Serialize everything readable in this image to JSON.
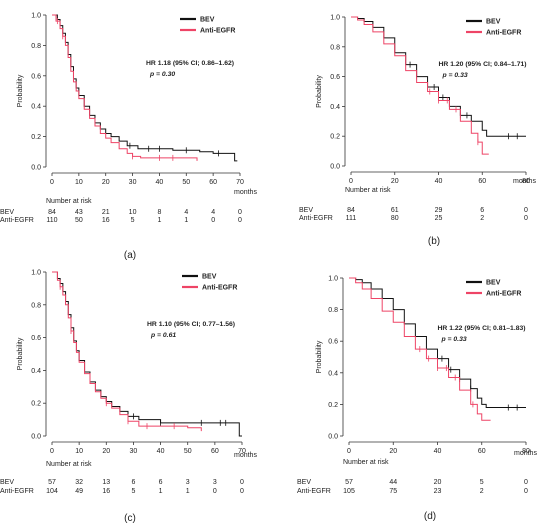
{
  "chart_data": [
    {
      "type": "line",
      "panel_label": "(a)",
      "ylabel": "Probability",
      "xlabel": "months",
      "xlim": [
        0,
        70
      ],
      "ylim": [
        0,
        1.0
      ],
      "xticks": [
        0,
        10,
        20,
        30,
        40,
        50,
        60,
        70
      ],
      "yticks": [
        0.0,
        0.2,
        0.4,
        0.6,
        0.8,
        1.0
      ],
      "annotation": {
        "hr": "HR 1.18 (95% CI; 0.86–1.62)",
        "p": "p = 0.30"
      },
      "series": [
        {
          "name": "BEV",
          "color": "#111111",
          "points": [
            [
              0,
              1.0
            ],
            [
              2,
              0.97
            ],
            [
              3,
              0.93
            ],
            [
              4,
              0.88
            ],
            [
              5,
              0.82
            ],
            [
              6,
              0.74
            ],
            [
              7,
              0.66
            ],
            [
              8,
              0.58
            ],
            [
              9,
              0.52
            ],
            [
              10,
              0.47
            ],
            [
              12,
              0.4
            ],
            [
              14,
              0.34
            ],
            [
              16,
              0.29
            ],
            [
              18,
              0.25
            ],
            [
              20,
              0.22
            ],
            [
              22,
              0.2
            ],
            [
              25,
              0.17
            ],
            [
              28,
              0.14
            ],
            [
              32,
              0.12
            ],
            [
              40,
              0.12
            ],
            [
              45,
              0.11
            ],
            [
              55,
              0.1
            ],
            [
              60,
              0.09
            ],
            [
              66,
              0.09
            ],
            [
              68,
              0.04
            ],
            [
              69,
              0.04
            ]
          ],
          "censor_x": [
            29,
            36,
            40,
            50,
            62
          ]
        },
        {
          "name": "Anti-EGFR",
          "color": "#ee4466",
          "points": [
            [
              0,
              1.0
            ],
            [
              1.5,
              0.96
            ],
            [
              3,
              0.91
            ],
            [
              4,
              0.86
            ],
            [
              5,
              0.8
            ],
            [
              6,
              0.72
            ],
            [
              7,
              0.63
            ],
            [
              8,
              0.56
            ],
            [
              9,
              0.5
            ],
            [
              10,
              0.45
            ],
            [
              12,
              0.38
            ],
            [
              14,
              0.32
            ],
            [
              16,
              0.27
            ],
            [
              18,
              0.22
            ],
            [
              20,
              0.19
            ],
            [
              22,
              0.16
            ],
            [
              25,
              0.12
            ],
            [
              28,
              0.09
            ],
            [
              30,
              0.07
            ],
            [
              33,
              0.06
            ],
            [
              40,
              0.06
            ],
            [
              48,
              0.06
            ],
            [
              54,
              0.04
            ]
          ],
          "censor_x": [
            2,
            4,
            30,
            40,
            45
          ]
        }
      ],
      "risk_table": {
        "title": "Number at risk",
        "times": [
          0,
          10,
          20,
          30,
          40,
          50,
          60,
          70
        ],
        "rows": [
          {
            "label": "BEV",
            "values": [
              "84",
              "43",
              "21",
              "10",
              "8",
              "4",
              "4",
              "0"
            ]
          },
          {
            "label": "Anti-EGFR",
            "values": [
              "110",
              "50",
              "16",
              "5",
              "1",
              "1",
              "0",
              "0"
            ]
          }
        ]
      }
    },
    {
      "type": "line",
      "panel_label": "(b)",
      "ylabel": "Probability",
      "xlabel": "months",
      "xlim": [
        0,
        80
      ],
      "ylim": [
        0,
        1.0
      ],
      "xticks": [
        0,
        20,
        40,
        60,
        80
      ],
      "yticks": [
        0.0,
        0.2,
        0.4,
        0.6,
        0.8,
        1.0
      ],
      "annotation": {
        "hr": "HR 1.20 (95% CI; 0.84–1.71)",
        "p": "p = 0.33"
      },
      "series": [
        {
          "name": "BEV",
          "color": "#111111",
          "points": [
            [
              0,
              1.0
            ],
            [
              3,
              0.99
            ],
            [
              6,
              0.97
            ],
            [
              10,
              0.93
            ],
            [
              15,
              0.86
            ],
            [
              20,
              0.76
            ],
            [
              25,
              0.68
            ],
            [
              30,
              0.6
            ],
            [
              35,
              0.53
            ],
            [
              40,
              0.46
            ],
            [
              45,
              0.4
            ],
            [
              50,
              0.34
            ],
            [
              55,
              0.3
            ],
            [
              60,
              0.24
            ],
            [
              62,
              0.2
            ],
            [
              80,
              0.2
            ]
          ],
          "censor_x": [
            27,
            30,
            35,
            38,
            42,
            45,
            50,
            53,
            72,
            76
          ]
        },
        {
          "name": "Anti-EGFR",
          "color": "#ee4466",
          "points": [
            [
              0,
              1.0
            ],
            [
              3,
              0.98
            ],
            [
              6,
              0.95
            ],
            [
              10,
              0.9
            ],
            [
              15,
              0.82
            ],
            [
              20,
              0.74
            ],
            [
              25,
              0.64
            ],
            [
              30,
              0.56
            ],
            [
              35,
              0.5
            ],
            [
              40,
              0.44
            ],
            [
              45,
              0.38
            ],
            [
              50,
              0.3
            ],
            [
              55,
              0.22
            ],
            [
              58,
              0.16
            ],
            [
              60,
              0.08
            ],
            [
              63,
              0.08
            ]
          ],
          "censor_x": [
            36,
            40,
            44,
            48,
            58
          ]
        }
      ],
      "risk_table": {
        "title": "Number at risk",
        "times": [
          0,
          20,
          40,
          60,
          80
        ],
        "rows": [
          {
            "label": "BEV",
            "values": [
              "84",
              "61",
              "29",
              "6",
              "0"
            ]
          },
          {
            "label": "Anti-EGFR",
            "values": [
              "111",
              "80",
              "25",
              "2",
              "0"
            ]
          }
        ]
      }
    },
    {
      "type": "line",
      "panel_label": "(c)",
      "ylabel": "Probability",
      "xlabel": "months",
      "xlim": [
        0,
        70
      ],
      "ylim": [
        0,
        1.0
      ],
      "xticks": [
        0,
        10,
        20,
        30,
        40,
        50,
        60,
        70
      ],
      "yticks": [
        0.0,
        0.2,
        0.4,
        0.6,
        0.8,
        1.0
      ],
      "annotation": {
        "hr": "HR 1.10 (95% CI; 0.77–1.56)",
        "p": "p = 0.61"
      },
      "series": [
        {
          "name": "BEV",
          "color": "#111111",
          "points": [
            [
              0,
              1.0
            ],
            [
              2,
              0.96
            ],
            [
              3,
              0.93
            ],
            [
              4,
              0.88
            ],
            [
              5,
              0.82
            ],
            [
              6,
              0.74
            ],
            [
              7,
              0.66
            ],
            [
              8,
              0.58
            ],
            [
              9,
              0.52
            ],
            [
              10,
              0.46
            ],
            [
              12,
              0.39
            ],
            [
              14,
              0.33
            ],
            [
              16,
              0.28
            ],
            [
              18,
              0.24
            ],
            [
              20,
              0.21
            ],
            [
              22,
              0.18
            ],
            [
              25,
              0.15
            ],
            [
              28,
              0.12
            ],
            [
              32,
              0.1
            ],
            [
              40,
              0.08
            ],
            [
              50,
              0.08
            ],
            [
              60,
              0.08
            ],
            [
              68,
              0.08
            ],
            [
              69,
              0.0
            ],
            [
              70,
              0.0
            ]
          ],
          "censor_x": [
            5,
            30,
            40,
            55,
            62,
            64
          ]
        },
        {
          "name": "Anti-EGFR",
          "color": "#ee4466",
          "points": [
            [
              0,
              1.0
            ],
            [
              2,
              0.95
            ],
            [
              3,
              0.91
            ],
            [
              4,
              0.86
            ],
            [
              5,
              0.8
            ],
            [
              6,
              0.72
            ],
            [
              7,
              0.64
            ],
            [
              8,
              0.57
            ],
            [
              9,
              0.51
            ],
            [
              10,
              0.45
            ],
            [
              12,
              0.38
            ],
            [
              14,
              0.32
            ],
            [
              16,
              0.27
            ],
            [
              18,
              0.23
            ],
            [
              20,
              0.2
            ],
            [
              22,
              0.17
            ],
            [
              25,
              0.13
            ],
            [
              28,
              0.09
            ],
            [
              32,
              0.06
            ],
            [
              40,
              0.06
            ],
            [
              50,
              0.05
            ],
            [
              55,
              0.03
            ]
          ],
          "censor_x": [
            3,
            7,
            20,
            28,
            35,
            45
          ]
        }
      ],
      "risk_table": {
        "title": "Number at risk",
        "times": [
          0,
          10,
          20,
          30,
          40,
          50,
          60,
          70
        ],
        "rows": [
          {
            "label": "BEV",
            "values": [
              "57",
              "32",
              "13",
              "6",
              "6",
              "3",
              "3",
              "0"
            ]
          },
          {
            "label": "Anti-EGFR",
            "values": [
              "104",
              "49",
              "16",
              "5",
              "1",
              "1",
              "0",
              "0"
            ]
          }
        ]
      }
    },
    {
      "type": "line",
      "panel_label": "(d)",
      "ylabel": "Probability",
      "xlabel": "months",
      "xlim": [
        0,
        80
      ],
      "ylim": [
        0,
        1.0
      ],
      "xticks": [
        0,
        20,
        40,
        60,
        80
      ],
      "yticks": [
        0.0,
        0.2,
        0.4,
        0.6,
        0.8,
        1.0
      ],
      "annotation": {
        "hr": "HR 1.22 (95% CI; 0.81–1.83)",
        "p": "p = 0.33"
      },
      "series": [
        {
          "name": "BEV",
          "color": "#111111",
          "points": [
            [
              0,
              1.0
            ],
            [
              3,
              0.99
            ],
            [
              6,
              0.97
            ],
            [
              10,
              0.93
            ],
            [
              15,
              0.87
            ],
            [
              20,
              0.8
            ],
            [
              25,
              0.71
            ],
            [
              30,
              0.63
            ],
            [
              35,
              0.55
            ],
            [
              40,
              0.49
            ],
            [
              45,
              0.42
            ],
            [
              50,
              0.36
            ],
            [
              55,
              0.3
            ],
            [
              58,
              0.24
            ],
            [
              60,
              0.2
            ],
            [
              62,
              0.18
            ],
            [
              80,
              0.18
            ]
          ],
          "censor_x": [
            40,
            42,
            46,
            50,
            55,
            72,
            76
          ]
        },
        {
          "name": "Anti-EGFR",
          "color": "#ee4466",
          "points": [
            [
              0,
              1.0
            ],
            [
              3,
              0.97
            ],
            [
              6,
              0.93
            ],
            [
              10,
              0.87
            ],
            [
              15,
              0.79
            ],
            [
              20,
              0.72
            ],
            [
              25,
              0.63
            ],
            [
              30,
              0.55
            ],
            [
              35,
              0.49
            ],
            [
              40,
              0.43
            ],
            [
              45,
              0.37
            ],
            [
              50,
              0.29
            ],
            [
              55,
              0.2
            ],
            [
              58,
              0.14
            ],
            [
              60,
              0.1
            ],
            [
              64,
              0.1
            ]
          ],
          "censor_x": [
            32,
            36,
            40,
            44,
            48,
            56
          ]
        }
      ],
      "risk_table": {
        "title": "Number at risk",
        "times": [
          0,
          20,
          40,
          60,
          80
        ],
        "rows": [
          {
            "label": "BEV",
            "values": [
              "57",
              "44",
              "20",
              "5",
              "0"
            ]
          },
          {
            "label": "Anti-EGFR",
            "values": [
              "105",
              "75",
              "23",
              "2",
              "0"
            ]
          }
        ]
      }
    }
  ]
}
